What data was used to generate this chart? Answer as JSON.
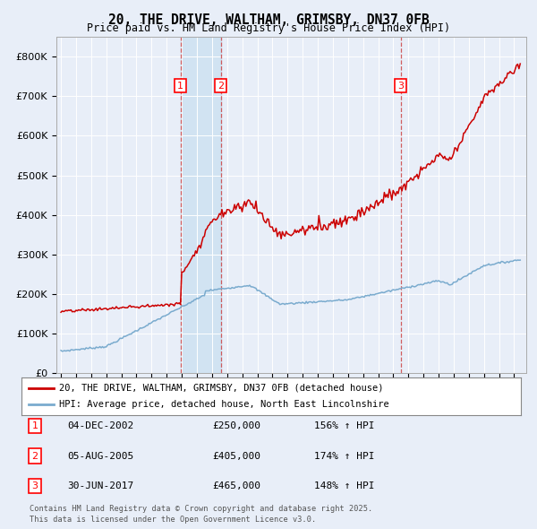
{
  "title": "20, THE DRIVE, WALTHAM, GRIMSBY, DN37 0FB",
  "subtitle": "Price paid vs. HM Land Registry's House Price Index (HPI)",
  "background_color": "#e8eef8",
  "plot_bg_color": "#e8eef8",
  "ylim": [
    0,
    850000
  ],
  "yticks": [
    0,
    100000,
    200000,
    300000,
    400000,
    500000,
    600000,
    700000,
    800000
  ],
  "ytick_labels": [
    "£0",
    "£100K",
    "£200K",
    "£300K",
    "£400K",
    "£500K",
    "£600K",
    "£700K",
    "£800K"
  ],
  "legend_line1": "20, THE DRIVE, WALTHAM, GRIMSBY, DN37 0FB (detached house)",
  "legend_line2": "HPI: Average price, detached house, North East Lincolnshire",
  "line1_color": "#cc0000",
  "line2_color": "#7aabce",
  "sale_markers": [
    {
      "num": 1,
      "date_num": 2002.92,
      "price": 250000,
      "date_str": "04-DEC-2002",
      "pct": "156%",
      "dir": "↑"
    },
    {
      "num": 2,
      "date_num": 2005.59,
      "price": 405000,
      "date_str": "05-AUG-2005",
      "pct": "174%",
      "dir": "↑"
    },
    {
      "num": 3,
      "date_num": 2017.49,
      "price": 465000,
      "date_str": "30-JUN-2017",
      "pct": "148%",
      "dir": "↑"
    }
  ],
  "vspan_pairs": [
    [
      2002.92,
      2005.59
    ]
  ],
  "vline_dates": [
    2002.92,
    2005.59,
    2017.49
  ],
  "footnote1": "Contains HM Land Registry data © Crown copyright and database right 2025.",
  "footnote2": "This data is licensed under the Open Government Licence v3.0.",
  "xmin": 1994.7,
  "xmax": 2025.8
}
